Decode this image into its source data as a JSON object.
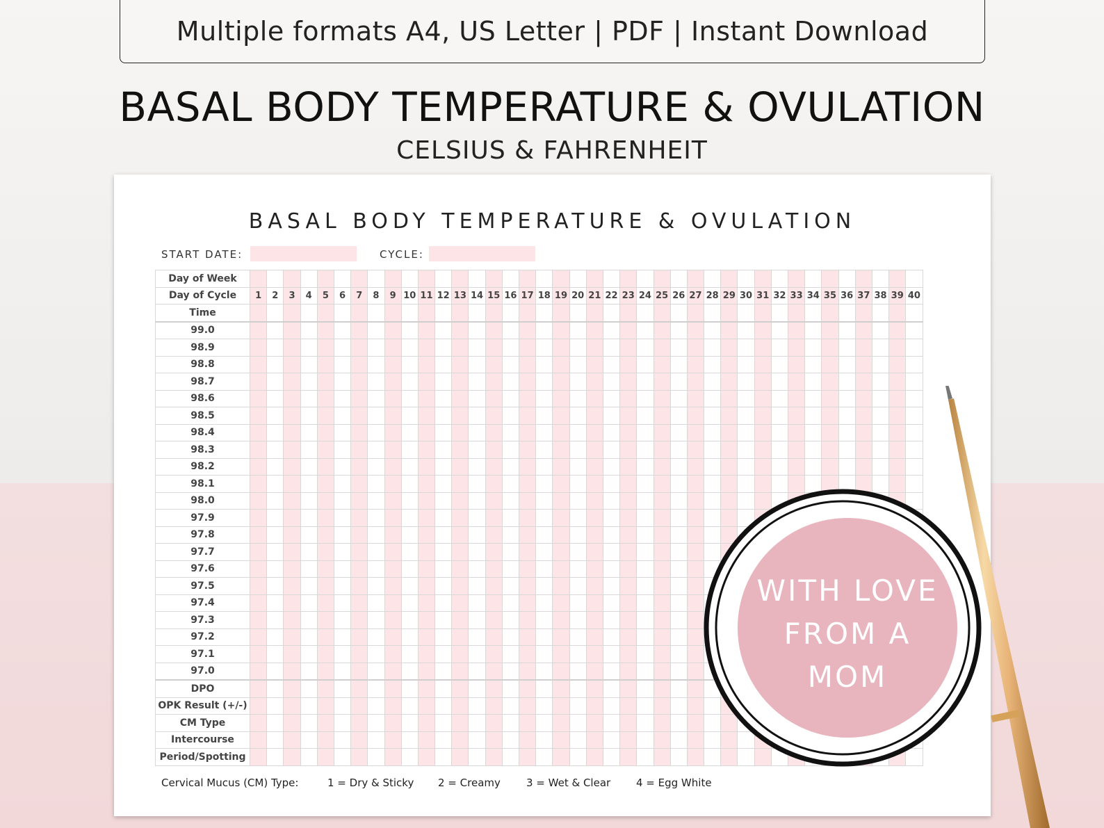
{
  "header": {
    "formats_text": "Multiple formats A4, US Letter | PDF | Instant Download",
    "title": "BASAL BODY TEMPERATURE & OVULATION",
    "subtitle": "CELSIUS & FAHRENHEIT"
  },
  "sheet": {
    "title": "BASAL BODY TEMPERATURE & OVULATION",
    "start_date_label": "START DATE:",
    "cycle_label": "CYCLE:",
    "row_labels_top": [
      "Day of Week",
      "Day of Cycle",
      "Time"
    ],
    "days": [
      "1",
      "2",
      "3",
      "4",
      "5",
      "6",
      "7",
      "8",
      "9",
      "10",
      "11",
      "12",
      "13",
      "14",
      "15",
      "16",
      "17",
      "18",
      "19",
      "20",
      "21",
      "22",
      "23",
      "24",
      "25",
      "26",
      "27",
      "28",
      "29",
      "30",
      "31",
      "32",
      "33",
      "34",
      "35",
      "36",
      "37",
      "38",
      "39",
      "40"
    ],
    "temperatures": [
      "99.0",
      "98.9",
      "98.8",
      "98.7",
      "98.6",
      "98.5",
      "98.4",
      "98.3",
      "98.2",
      "98.1",
      "98.0",
      "97.9",
      "97.8",
      "97.7",
      "97.6",
      "97.5",
      "97.4",
      "97.3",
      "97.2",
      "97.1",
      "97.0"
    ],
    "row_labels_bottom": [
      "DPO",
      "OPK Result (+/-)",
      "CM Type",
      "Intercourse",
      "Period/Spotting"
    ],
    "legend": {
      "title": "Cervical Mucus (CM) Type:",
      "items": [
        "1 = Dry & Sticky",
        "2 = Creamy",
        "3 = Wet & Clear",
        "4 = Egg White"
      ]
    }
  },
  "badge": {
    "line1": "WITH LOVE",
    "line2": "FROM A",
    "line3": "MOM",
    "color": "#e8b4bd"
  },
  "colors": {
    "pink_column": "#fde4e6",
    "background_bottom": "#f2d8d9"
  }
}
